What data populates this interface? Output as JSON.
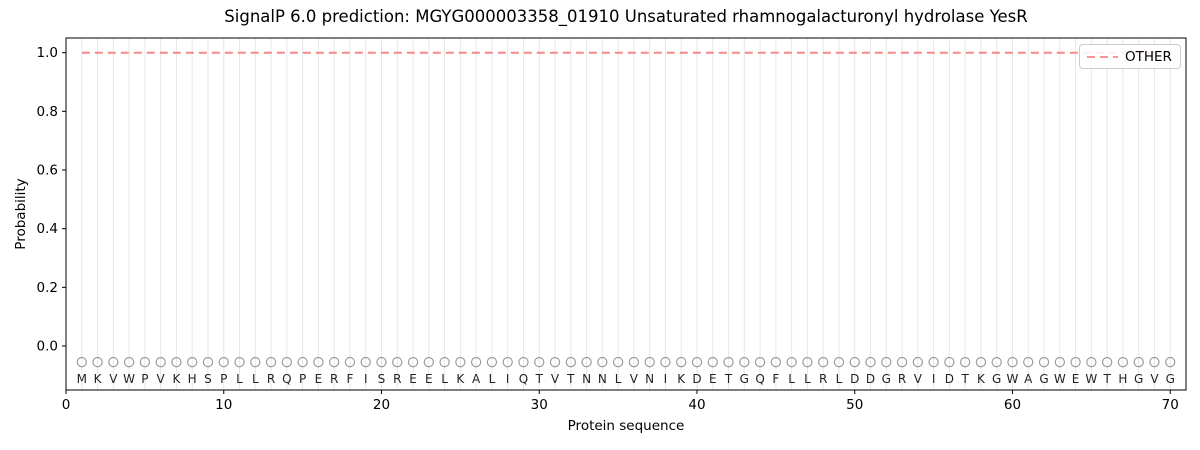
{
  "chart_data": {
    "type": "line",
    "title": "SignalP 6.0 prediction: MGYG000003358_01910 Unsaturated rhamnogalacturonyl hydrolase YesR",
    "xlabel": "Protein sequence",
    "ylabel": "Probability",
    "xlim": [
      0,
      71
    ],
    "ylim": [
      -0.15,
      1.05
    ],
    "x_ticks": [
      0,
      10,
      20,
      30,
      40,
      50,
      60,
      70
    ],
    "y_ticks": [
      "0.0",
      "0.2",
      "0.4",
      "0.6",
      "0.8",
      "1.0"
    ],
    "grid": "vertical gridline at every residue position, no horizontal gridlines",
    "sequence": "MKVWPVKHSPLLRQPERFISREELKALIQTVTNNLVNIKDETGQFLLRLDDGRVIDTKGWAGWEWTHGVG",
    "series": [
      {
        "name": "OTHER",
        "style": "dashed",
        "color": "#f78888",
        "x_start": 1,
        "values": [
          1.0,
          1.0,
          1.0,
          1.0,
          1.0,
          1.0,
          1.0,
          1.0,
          1.0,
          1.0,
          1.0,
          1.0,
          1.0,
          1.0,
          1.0,
          1.0,
          1.0,
          1.0,
          1.0,
          1.0,
          1.0,
          1.0,
          1.0,
          1.0,
          1.0,
          1.0,
          1.0,
          1.0,
          1.0,
          1.0,
          1.0,
          1.0,
          1.0,
          1.0,
          1.0,
          1.0,
          1.0,
          1.0,
          1.0,
          1.0,
          1.0,
          1.0,
          1.0,
          1.0,
          1.0,
          1.0,
          1.0,
          1.0,
          1.0,
          1.0,
          1.0,
          1.0,
          1.0,
          1.0,
          1.0,
          1.0,
          1.0,
          1.0,
          1.0,
          1.0,
          1.0,
          1.0,
          1.0,
          1.0,
          1.0,
          1.0,
          1.0,
          1.0,
          1.0,
          1.0
        ]
      }
    ],
    "residue_markers": {
      "shape": "circle-outline",
      "y": -0.055,
      "color": "#9b9b9b"
    },
    "sequence_letter_y": -0.11,
    "legend": {
      "position": "upper right",
      "entries": [
        {
          "label": "OTHER",
          "color": "#f78888",
          "style": "dashed"
        }
      ]
    },
    "colors": {
      "gridline": "#e7e7e7",
      "spine": "#000000",
      "tick_text": "#000000",
      "sequence_text": "#222222",
      "background": "#ffffff"
    }
  }
}
